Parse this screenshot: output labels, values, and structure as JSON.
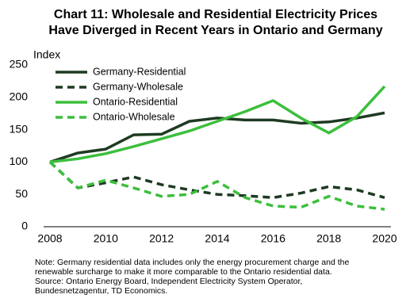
{
  "chart_data": {
    "type": "line",
    "title": [
      "Chart 11: Wholesale and Residential Electricity Prices",
      "Have Diverged in Recent Years in Ontario and Germany"
    ],
    "y_label": "Index",
    "x": [
      2008,
      2009,
      2010,
      2011,
      2012,
      2013,
      2014,
      2015,
      2016,
      2017,
      2018,
      2019,
      2020
    ],
    "xlim": [
      2008,
      2020
    ],
    "xticks": [
      2008,
      2010,
      2012,
      2014,
      2016,
      2018,
      2020
    ],
    "ylim": [
      0,
      250
    ],
    "yticks": [
      0,
      50,
      100,
      150,
      200,
      250
    ],
    "legend": "upper-left",
    "series": [
      {
        "name": "Germany-Residential",
        "color": "#1e3b22",
        "dash": false,
        "values": [
          100,
          114,
          120,
          142,
          143,
          163,
          168,
          165,
          165,
          160,
          162,
          168,
          176
        ]
      },
      {
        "name": "Germany-Wholesale",
        "color": "#1e3b22",
        "dash": true,
        "values": [
          100,
          60,
          68,
          77,
          65,
          57,
          50,
          48,
          45,
          52,
          62,
          57,
          45
        ]
      },
      {
        "name": "Ontario-Residential",
        "color": "#3cbf3c",
        "dash": false,
        "values": [
          100,
          105,
          113,
          124,
          136,
          148,
          163,
          178,
          195,
          168,
          145,
          170,
          217
        ]
      },
      {
        "name": "Ontario-Wholesale",
        "color": "#3cbf3c",
        "dash": true,
        "values": [
          100,
          60,
          72,
          60,
          47,
          50,
          70,
          45,
          32,
          30,
          47,
          32,
          27
        ]
      }
    ],
    "notes": [
      "Note: Germany residential data includes only the energy procurement charge and the",
      "renewable surcharge to make it more comparable  to the Ontario  residential data.",
      "Source: Ontario Energy Board, Independent  Electricity System Operator,",
      "Bundesnetzagentur,  TD Economics."
    ]
  }
}
